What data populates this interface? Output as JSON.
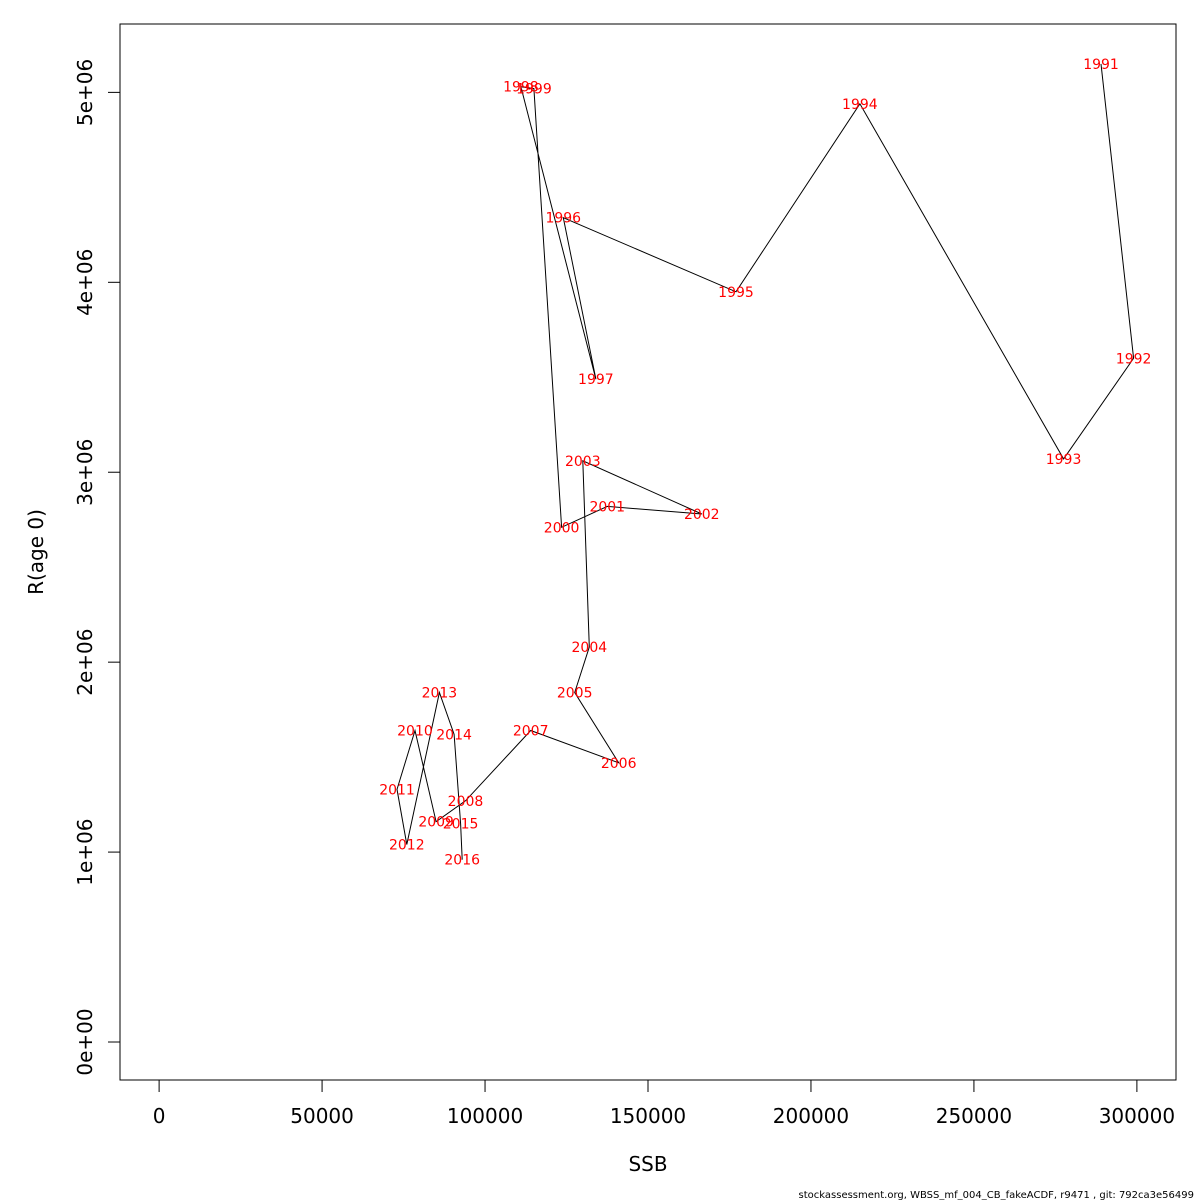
{
  "chart_data": {
    "type": "line",
    "title": "",
    "xlabel": "SSB",
    "ylabel": "R(age 0)",
    "xlim": [
      -12000,
      312000
    ],
    "ylim": [
      -200000,
      5360000
    ],
    "x_ticks": [
      0,
      50000,
      100000,
      150000,
      200000,
      250000,
      300000
    ],
    "x_tick_labels": [
      "0",
      "50000",
      "100000",
      "150000",
      "200000",
      "250000",
      "300000"
    ],
    "y_ticks": [
      0,
      1000000,
      2000000,
      3000000,
      4000000,
      5000000
    ],
    "y_tick_labels": [
      "0e+00",
      "1e+06",
      "2e+06",
      "3e+06",
      "4e+06",
      "5e+06"
    ],
    "grid": false,
    "line_color": "#000000",
    "label_color": "#ff0000",
    "points": [
      {
        "year": "1991",
        "x": 289000,
        "y": 5150000
      },
      {
        "year": "1992",
        "x": 299000,
        "y": 3600000
      },
      {
        "year": "1993",
        "x": 277500,
        "y": 3070000
      },
      {
        "year": "1994",
        "x": 215000,
        "y": 4940000
      },
      {
        "year": "1995",
        "x": 177000,
        "y": 3950000
      },
      {
        "year": "1996",
        "x": 124000,
        "y": 4340000
      },
      {
        "year": "1997",
        "x": 134000,
        "y": 3490000
      },
      {
        "year": "1998",
        "x": 111000,
        "y": 5030000
      },
      {
        "year": "1999",
        "x": 115000,
        "y": 5020000
      },
      {
        "year": "2000",
        "x": 123500,
        "y": 2710000
      },
      {
        "year": "2001",
        "x": 137500,
        "y": 2820000
      },
      {
        "year": "2002",
        "x": 166500,
        "y": 2780000
      },
      {
        "year": "2003",
        "x": 130000,
        "y": 3060000
      },
      {
        "year": "2004",
        "x": 132000,
        "y": 2080000
      },
      {
        "year": "2005",
        "x": 127500,
        "y": 1840000
      },
      {
        "year": "2006",
        "x": 141000,
        "y": 1470000
      },
      {
        "year": "2007",
        "x": 114000,
        "y": 1640000
      },
      {
        "year": "2008",
        "x": 94000,
        "y": 1270000
      },
      {
        "year": "2009",
        "x": 85000,
        "y": 1160000
      },
      {
        "year": "2010",
        "x": 78500,
        "y": 1640000
      },
      {
        "year": "2011",
        "x": 73000,
        "y": 1330000
      },
      {
        "year": "2012",
        "x": 76000,
        "y": 1040000
      },
      {
        "year": "2013",
        "x": 86000,
        "y": 1840000
      },
      {
        "year": "2014",
        "x": 90500,
        "y": 1620000
      },
      {
        "year": "2015",
        "x": 92500,
        "y": 1150000
      },
      {
        "year": "2016",
        "x": 93000,
        "y": 960000
      }
    ]
  },
  "footer": "stockassessment.org, WBSS_mf_004_CB_fakeACDF, r9471 , git: 792ca3e56499"
}
